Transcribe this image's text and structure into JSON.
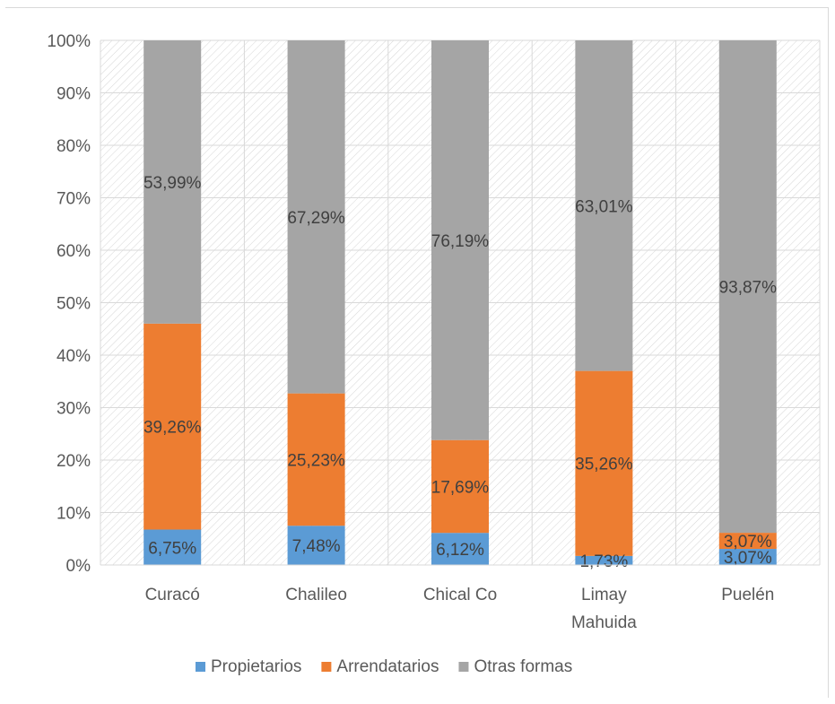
{
  "chart_data": {
    "type": "bar",
    "stacked": true,
    "percent_stacked": true,
    "categories": [
      [
        "Curacó"
      ],
      [
        "Chalileo"
      ],
      [
        "Chical Co"
      ],
      [
        "Limay",
        "Mahuida"
      ],
      [
        "Puelén"
      ]
    ],
    "series": [
      {
        "name": "Propietarios",
        "color": "#5b9bd5",
        "values": [
          6.75,
          7.48,
          6.12,
          1.73,
          3.07
        ],
        "labels": [
          "6,75%",
          "7,48%",
          "6,12%",
          "1,73%",
          "3,07%"
        ]
      },
      {
        "name": "Arrendatarios",
        "color": "#ed7d31",
        "values": [
          39.26,
          25.23,
          17.69,
          35.26,
          3.07
        ],
        "labels": [
          "39,26%",
          "25,23%",
          "17,69%",
          "35,26%",
          "3,07%"
        ]
      },
      {
        "name": "Otras formas",
        "color": "#a5a5a5",
        "values": [
          53.99,
          67.29,
          76.19,
          63.01,
          93.87
        ],
        "labels": [
          "53,99%",
          "67,29%",
          "76,19%",
          "63,01%",
          "93,87%"
        ]
      }
    ],
    "y_ticks": [
      "0%",
      "10%",
      "20%",
      "30%",
      "40%",
      "50%",
      "60%",
      "70%",
      "80%",
      "90%",
      "100%"
    ],
    "ylim": [
      0,
      100
    ],
    "grid": true,
    "legend_position": "bottom"
  }
}
